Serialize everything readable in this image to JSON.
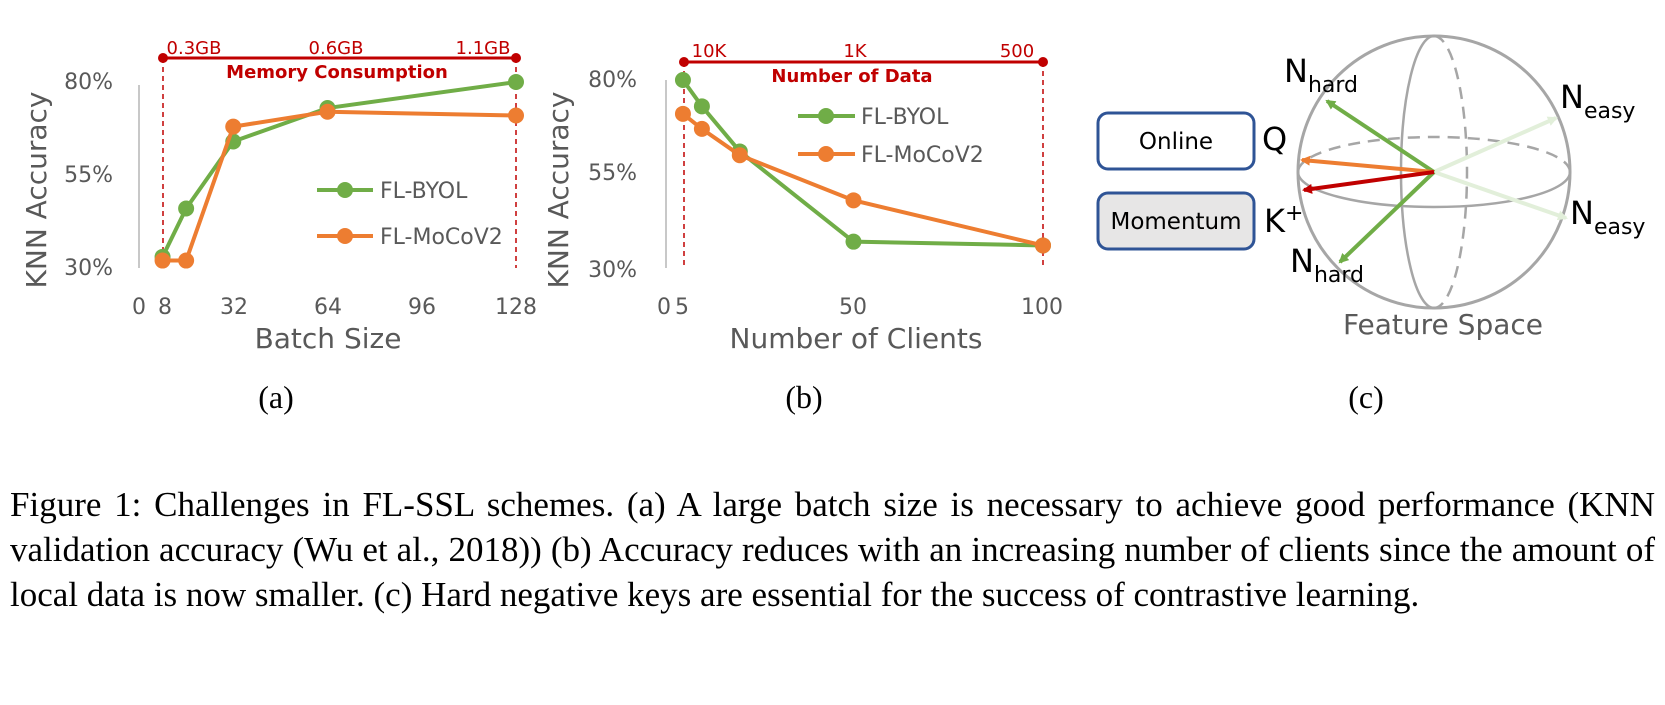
{
  "figure": {
    "panels": [
      {
        "label": "(a)",
        "chart_data": {
          "type": "line",
          "xlabel": "Batch Size",
          "ylabel": "KNN Accuracy",
          "x_ticks": [
            0,
            8,
            32,
            64,
            96,
            128
          ],
          "y_ticks": [
            "30%",
            "55%",
            "80%"
          ],
          "xlim": [
            0,
            128
          ],
          "ylim": [
            30,
            80
          ],
          "series": [
            {
              "name": "FL-BYOL",
              "color": "#70ad47",
              "x": [
                8,
                16,
                32,
                64,
                128
              ],
              "y": [
                33,
                46,
                64,
                73,
                80
              ]
            },
            {
              "name": "FL-MoCoV2",
              "color": "#ed7d31",
              "x": [
                8,
                16,
                32,
                64,
                128
              ],
              "y": [
                32,
                32,
                68,
                72,
                71
              ]
            }
          ],
          "top_axis": {
            "title": "Memory Consumption",
            "labels": [
              "0.3GB",
              "0.6GB",
              "1.1GB"
            ],
            "color": "#c00000"
          },
          "legend_position": "right"
        }
      },
      {
        "label": "(b)",
        "chart_data": {
          "type": "line",
          "xlabel": "Number of Clients",
          "ylabel": "KNN Accuracy",
          "x_ticks": [
            0,
            5,
            50,
            100
          ],
          "y_ticks": [
            "30%",
            "55%",
            "80%"
          ],
          "xlim": [
            0,
            100
          ],
          "ylim": [
            30,
            80
          ],
          "series": [
            {
              "name": "FL-BYOL",
              "color": "#70ad47",
              "x": [
                5,
                10,
                20,
                50,
                100
              ],
              "y": [
                80,
                73,
                61,
                37,
                36
              ]
            },
            {
              "name": "FL-MoCoV2",
              "color": "#ed7d31",
              "x": [
                5,
                10,
                20,
                50,
                100
              ],
              "y": [
                71,
                67,
                60,
                48,
                36
              ]
            }
          ],
          "top_axis": {
            "title": "Number of Data",
            "labels": [
              "10K",
              "1K",
              "500"
            ],
            "color": "#c00000"
          },
          "legend_position": "top-right"
        }
      },
      {
        "label": "(c)",
        "diagram": {
          "online_label": "Online",
          "momentum_label": "Momentum",
          "q_label": "Q",
          "k_label": "K",
          "k_sup": "+",
          "n_main": "N",
          "hard_sub": "hard",
          "easy_sub": "easy",
          "caption": "Feature Space"
        }
      }
    ]
  },
  "caption": "Figure 1: Challenges in FL-SSL schemes. (a) A large batch size is necessary to achieve good performance (KNN validation accuracy (Wu et al., 2018)) (b) Accuracy reduces with an increasing number of clients since the amount of local data is now smaller. (c) Hard negative keys are essential for the success of contrastive learning."
}
